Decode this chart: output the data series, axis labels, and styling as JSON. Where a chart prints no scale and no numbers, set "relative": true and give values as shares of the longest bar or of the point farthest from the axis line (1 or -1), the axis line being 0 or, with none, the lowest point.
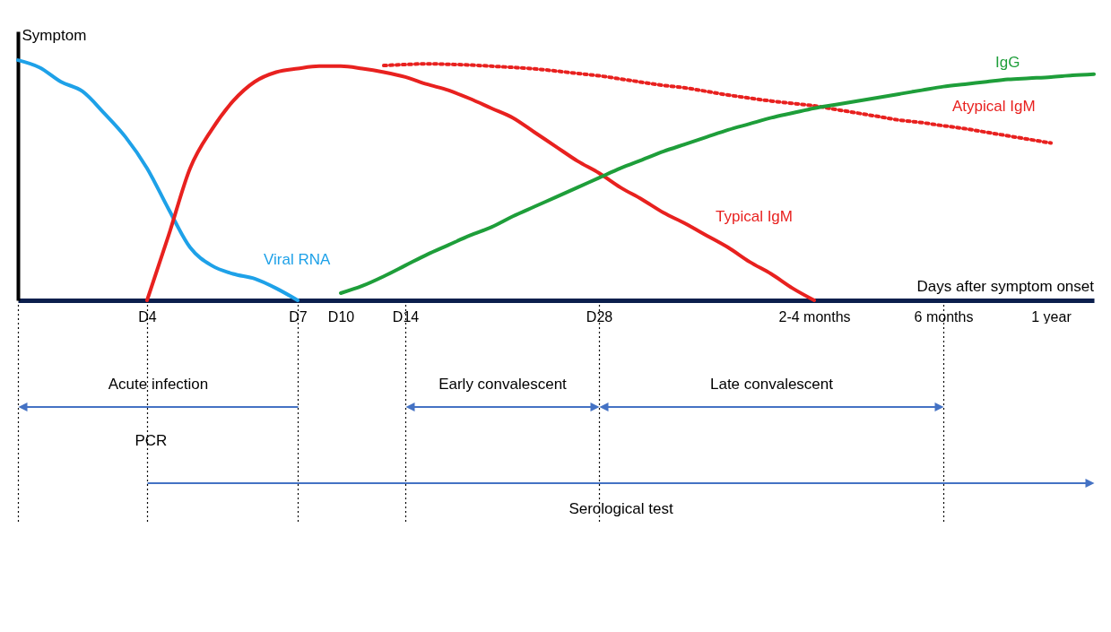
{
  "chart_data": {
    "type": "line",
    "relative": true,
    "ylabel": "Symptom",
    "xlabel": "Days after symptom onset",
    "categories": [
      null,
      null,
      null,
      null,
      null,
      null,
      "D4",
      null,
      null,
      null,
      null,
      null,
      null,
      "D7",
      null,
      "D10",
      null,
      null,
      "D14",
      null,
      null,
      null,
      null,
      null,
      null,
      null,
      null,
      "D28",
      null,
      null,
      null,
      null,
      null,
      null,
      null,
      null,
      null,
      "2-4 months",
      null,
      null,
      null,
      null,
      null,
      "6  months",
      null,
      null,
      null,
      null,
      "1 year",
      null,
      null
    ],
    "line_style": "solid",
    "series": [
      {
        "name": "Viral RNA",
        "color": "#1ea1e8",
        "values": [
          1,
          0.97,
          0.91,
          0.87,
          0.78,
          0.68,
          0.55,
          0.38,
          0.22,
          0.145,
          0.11,
          0.09,
          0.05,
          0,
          null,
          null,
          null,
          null,
          null,
          null,
          null,
          null,
          null,
          null,
          null,
          null,
          null,
          null,
          null,
          null,
          null,
          null,
          null,
          null,
          null,
          null,
          null,
          null,
          null,
          null,
          null,
          null,
          null,
          null,
          null,
          null,
          null,
          null,
          null,
          null,
          null
        ]
      },
      {
        "name": "Typical IgM",
        "color": "#e8211f",
        "values": [
          null,
          null,
          null,
          null,
          null,
          null,
          0,
          0.27,
          0.55,
          0.71,
          0.83,
          0.91,
          0.95,
          0.965,
          0.975,
          0.975,
          0.965,
          0.95,
          0.93,
          0.9,
          0.875,
          0.84,
          0.8,
          0.76,
          0.7,
          0.64,
          0.58,
          0.53,
          0.47,
          0.42,
          0.365,
          0.32,
          0.27,
          0.22,
          0.16,
          0.11,
          0.05,
          0,
          null,
          null,
          null,
          null,
          null,
          null,
          null,
          null,
          null,
          null,
          null,
          null,
          null
        ]
      },
      {
        "name": "Atypical IgM",
        "color": "#e8211f",
        "line_style": "dotted",
        "values": [
          null,
          null,
          null,
          null,
          null,
          null,
          null,
          null,
          null,
          null,
          null,
          null,
          null,
          null,
          null,
          null,
          null,
          0.978,
          0.982,
          0.985,
          0.983,
          0.98,
          0.975,
          0.97,
          0.964,
          0.955,
          0.945,
          0.935,
          0.922,
          0.908,
          0.895,
          0.885,
          0.87,
          0.855,
          0.842,
          0.83,
          0.82,
          0.81,
          0.795,
          0.78,
          0.765,
          0.75,
          0.74,
          0.727,
          0.715,
          0.7,
          0.685,
          0.67,
          0.655,
          null,
          null
        ]
      },
      {
        "name": "IgG",
        "color": "#1e9e3a",
        "values": [
          null,
          null,
          null,
          null,
          null,
          null,
          null,
          null,
          null,
          null,
          null,
          null,
          null,
          null,
          null,
          0.03,
          0.06,
          0.1,
          0.145,
          0.19,
          0.23,
          0.27,
          0.305,
          0.35,
          0.39,
          0.43,
          0.47,
          0.51,
          0.55,
          0.585,
          0.62,
          0.65,
          0.68,
          0.71,
          0.735,
          0.76,
          0.78,
          0.8,
          0.815,
          0.83,
          0.845,
          0.86,
          0.875,
          0.89,
          0.9,
          0.91,
          0.92,
          0.925,
          0.93,
          0.937,
          0.942
        ]
      }
    ],
    "annotations": [
      "Acute infection",
      "Early convalescent",
      "Late convalescent",
      "PCR",
      "Serological test"
    ]
  }
}
